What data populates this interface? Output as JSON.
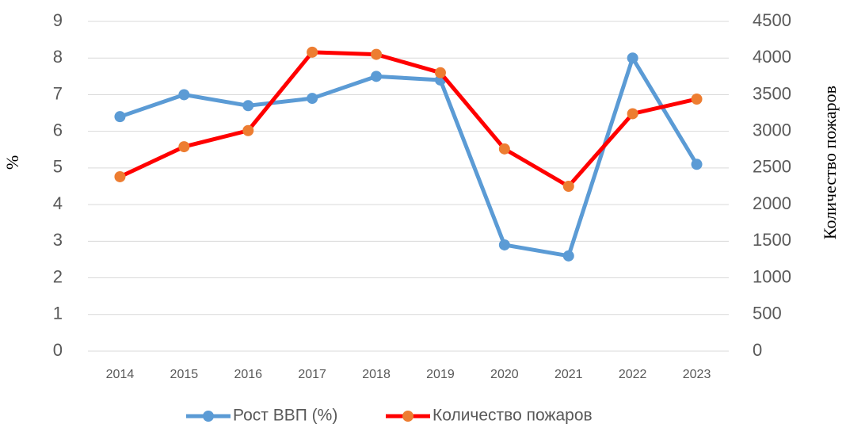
{
  "chart_data": {
    "type": "line",
    "categories": [
      "2014",
      "2015",
      "2016",
      "2017",
      "2018",
      "2019",
      "2020",
      "2021",
      "2022",
      "2023"
    ],
    "series": [
      {
        "name": "Рост ВВП (%)",
        "color": "#5b9bd5",
        "marker_color": "#5b9bd5",
        "axis": "y",
        "values": [
          6.4,
          7.0,
          6.7,
          6.9,
          7.5,
          7.4,
          2.9,
          2.6,
          8.0,
          5.1
        ]
      },
      {
        "name": "Количество пожаров",
        "color": "#ff0000",
        "marker_color": "#ed7d31",
        "axis": "y2",
        "values": [
          2380,
          2790,
          3010,
          4080,
          4050,
          3800,
          2760,
          2250,
          3240,
          3440
        ]
      }
    ],
    "ylabel": "%",
    "y2label": "Количество пожаров",
    "ylim": [
      0,
      9
    ],
    "yticks": [
      0,
      1,
      2,
      3,
      4,
      5,
      6,
      7,
      8,
      9
    ],
    "y2lim": [
      0,
      4500
    ],
    "y2ticks": [
      0,
      500,
      1000,
      1500,
      2000,
      2500,
      3000,
      3500,
      4000,
      4500
    ],
    "grid": true,
    "legend": "bottom"
  }
}
